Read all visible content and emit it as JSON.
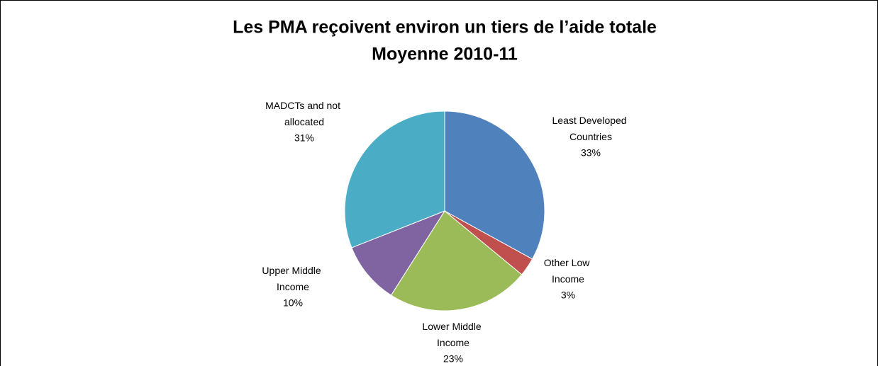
{
  "chart_data": {
    "type": "pie",
    "title": [
      "Les PMA reçoivent environ un tiers de l’aide totale",
      "Moyenne 2010-11"
    ],
    "categories": [
      "Least Developed Countries",
      "Other Low Income",
      "Lower Middle Income",
      "Upper Middle Income",
      "MADCTs and not allocated"
    ],
    "values": [
      33,
      3,
      23,
      10,
      31
    ],
    "value_labels": [
      "33%",
      "3%",
      "23%",
      "10%",
      "31%"
    ],
    "colors": [
      "#4f81bd",
      "#c0504d",
      "#9bbb59",
      "#8064a2",
      "#4bacc6"
    ]
  }
}
